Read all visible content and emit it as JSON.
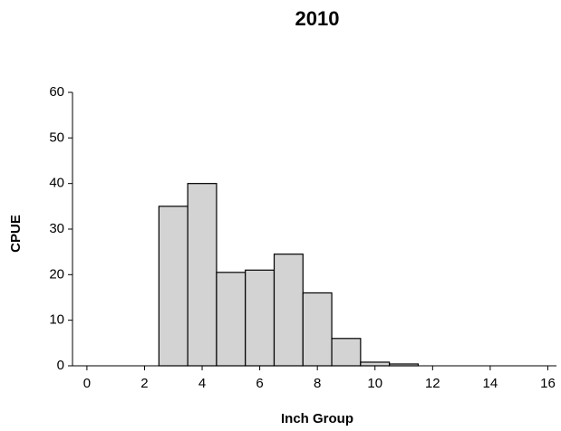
{
  "chart_data": {
    "type": "histogram",
    "title": "2010",
    "x_label": "Inch Group",
    "y_label": "CPUE",
    "bins": [
      2.5,
      3.5,
      4.5,
      5.5,
      6.5,
      7.5,
      8.5,
      9.5,
      10.5,
      11.5
    ],
    "values": [
      35,
      40,
      20.5,
      21,
      24.5,
      16,
      6,
      0.8,
      0.4
    ],
    "color": "#d3d3d3",
    "xlim": [
      -0.5,
      16.3
    ],
    "xticks": [
      0,
      2,
      4,
      6,
      8,
      10,
      12,
      14,
      16
    ],
    "ylim": [
      0,
      60
    ],
    "yticks": [
      0,
      10,
      20,
      30,
      40,
      50,
      60
    ],
    "grid": false
  }
}
